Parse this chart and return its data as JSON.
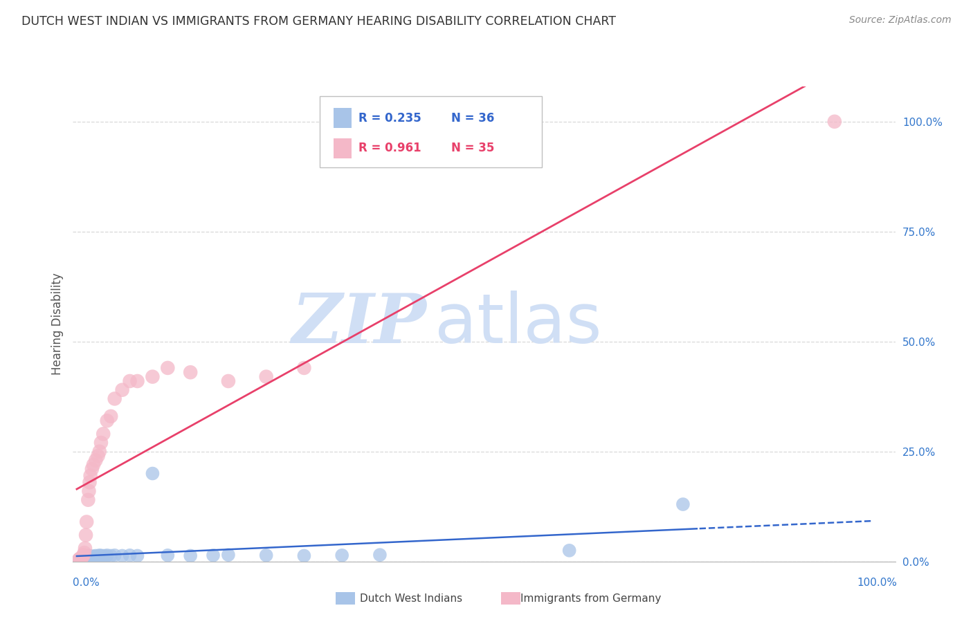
{
  "title": "DUTCH WEST INDIAN VS IMMIGRANTS FROM GERMANY HEARING DISABILITY CORRELATION CHART",
  "source": "Source: ZipAtlas.com",
  "ylabel": "Hearing Disability",
  "ylim": [
    0,
    1.08
  ],
  "xlim": [
    -0.005,
    1.08
  ],
  "series1_label": "Dutch West Indians",
  "series1_color": "#a8c4e8",
  "series1_line_color": "#3366cc",
  "series1_R": "0.235",
  "series1_N": "36",
  "series2_label": "Immigrants from Germany",
  "series2_color": "#f4b8c8",
  "series2_line_color": "#e8406a",
  "series2_R": "0.961",
  "series2_N": "35",
  "watermark_top": "ZIP",
  "watermark_bot": "atlas",
  "watermark_color": "#d0dff5",
  "grid_color": "#d8d8d8",
  "background_color": "#ffffff",
  "dutch_x": [
    0.003,
    0.005,
    0.006,
    0.008,
    0.01,
    0.011,
    0.012,
    0.013,
    0.015,
    0.016,
    0.018,
    0.02,
    0.022,
    0.025,
    0.027,
    0.03,
    0.032,
    0.035,
    0.038,
    0.04,
    0.045,
    0.05,
    0.06,
    0.07,
    0.08,
    0.1,
    0.12,
    0.15,
    0.18,
    0.2,
    0.25,
    0.3,
    0.35,
    0.4,
    0.65,
    0.8
  ],
  "dutch_y": [
    0.005,
    0.007,
    0.008,
    0.009,
    0.01,
    0.01,
    0.011,
    0.012,
    0.013,
    0.013,
    0.012,
    0.011,
    0.012,
    0.013,
    0.012,
    0.014,
    0.013,
    0.013,
    0.012,
    0.014,
    0.013,
    0.014,
    0.013,
    0.014,
    0.013,
    0.2,
    0.014,
    0.013,
    0.014,
    0.015,
    0.014,
    0.013,
    0.014,
    0.015,
    0.025,
    0.13
  ],
  "germany_x": [
    0.003,
    0.004,
    0.005,
    0.006,
    0.007,
    0.008,
    0.009,
    0.01,
    0.011,
    0.012,
    0.013,
    0.015,
    0.016,
    0.017,
    0.018,
    0.02,
    0.022,
    0.025,
    0.028,
    0.03,
    0.032,
    0.035,
    0.04,
    0.045,
    0.05,
    0.06,
    0.07,
    0.08,
    0.1,
    0.12,
    0.15,
    0.2,
    0.25,
    0.3,
    1.0
  ],
  "germany_y": [
    0.005,
    0.006,
    0.007,
    0.008,
    0.01,
    0.012,
    0.015,
    0.02,
    0.03,
    0.06,
    0.09,
    0.14,
    0.16,
    0.18,
    0.195,
    0.21,
    0.22,
    0.23,
    0.24,
    0.25,
    0.27,
    0.29,
    0.32,
    0.33,
    0.37,
    0.39,
    0.41,
    0.41,
    0.42,
    0.44,
    0.43,
    0.41,
    0.42,
    0.44,
    1.0
  ],
  "legend_R1": "R = 0.235",
  "legend_N1": "N = 36",
  "legend_R2": "R = 0.961",
  "legend_N2": "N = 35"
}
